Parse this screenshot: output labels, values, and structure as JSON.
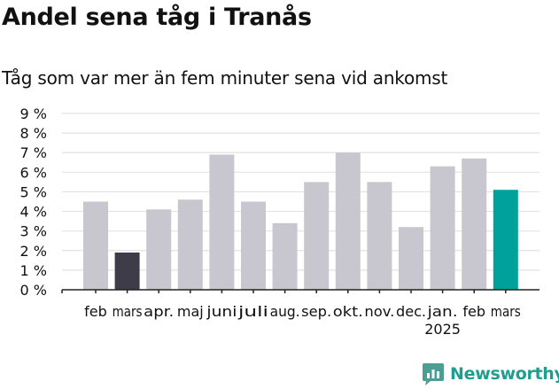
{
  "title": "Andel sena tåg i Tranås",
  "subtitle": "Tåg som var mer än fem minuter sena vid ankomst",
  "brand": {
    "name": "Newsworthy",
    "icon": "newsworthy-logo-icon"
  },
  "colors": {
    "bar_default": "#c8c7cf",
    "bar_highlight_dark": "#3f3c4a",
    "bar_latest": "#00a19a",
    "grid": "#e2e2e2",
    "axis": "#222222"
  },
  "chart_data": {
    "type": "bar",
    "categories": [
      "feb",
      "mars",
      "apr.",
      "maj",
      "juni",
      "juli",
      "aug.",
      "sep.",
      "okt.",
      "nov.",
      "dec.",
      "jan.",
      "feb",
      "mars"
    ],
    "year_label": "2025",
    "values": [
      4.5,
      1.9,
      4.1,
      4.6,
      6.9,
      4.5,
      3.4,
      5.5,
      7.0,
      5.5,
      3.2,
      6.3,
      6.7,
      5.1
    ],
    "bar_colors": [
      "default",
      "highlight_dark",
      "default",
      "default",
      "default",
      "default",
      "default",
      "default",
      "default",
      "default",
      "default",
      "default",
      "default",
      "latest"
    ],
    "yticks": [
      "0 %",
      "1 %",
      "2 %",
      "3 %",
      "4 %",
      "5 %",
      "6 %",
      "7 %",
      "8 %",
      "9 %"
    ],
    "ylim": [
      0,
      9
    ],
    "grid": true,
    "xlabel": "",
    "ylabel": ""
  }
}
